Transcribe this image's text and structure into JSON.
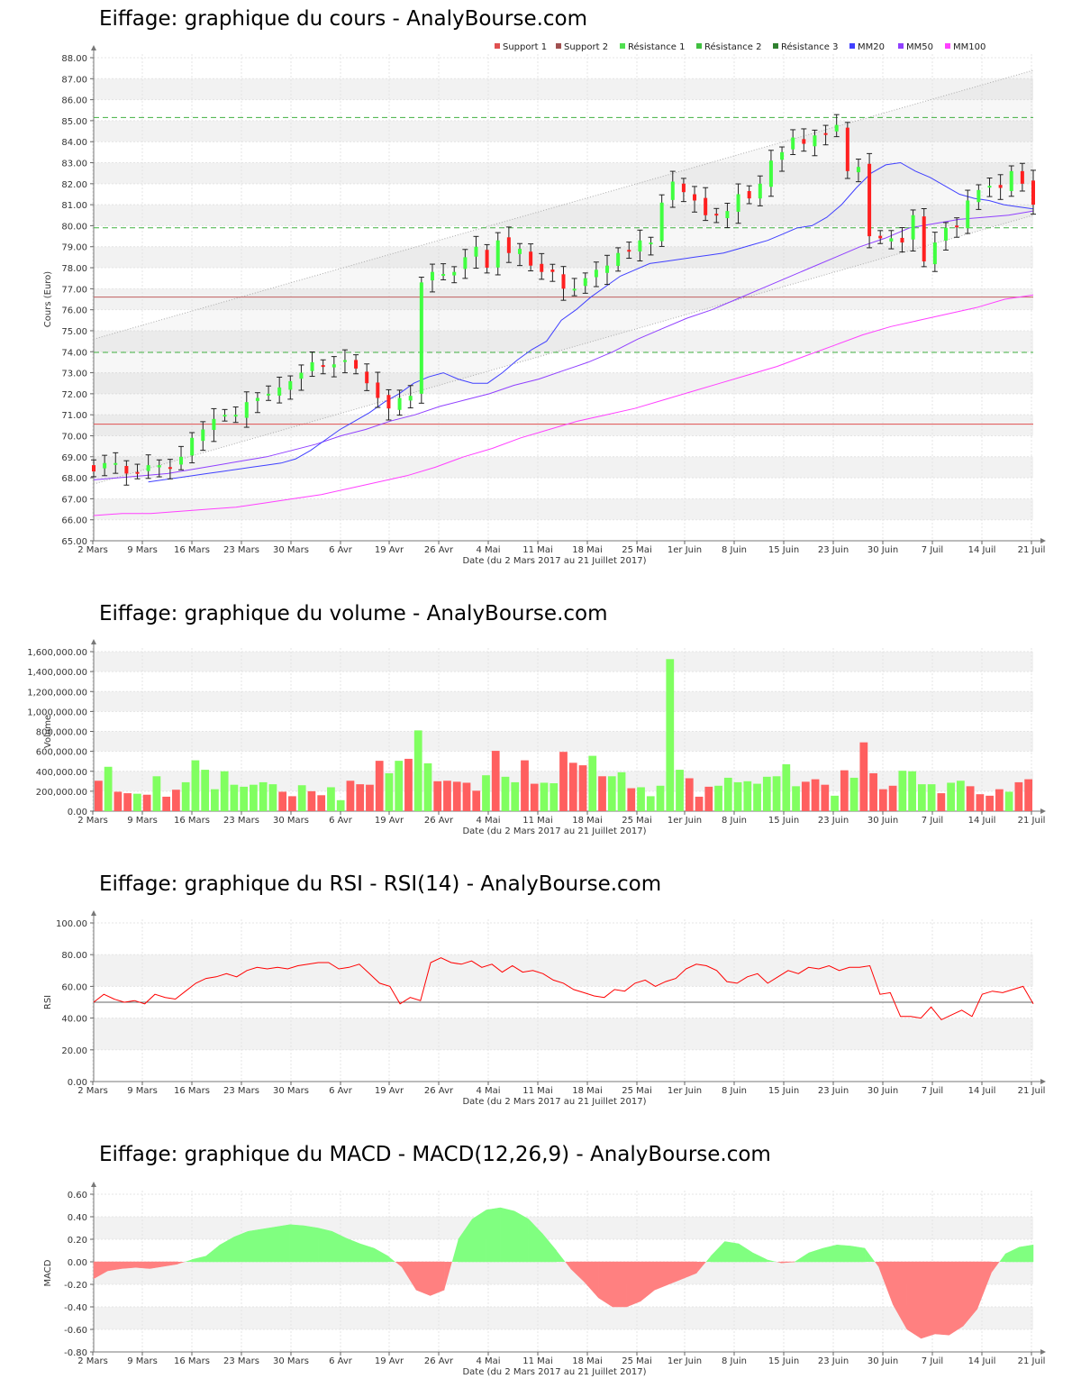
{
  "chart_data": [
    {
      "type": "candlestick",
      "title": "Eiffage: graphique du cours - AnalyBourse.com",
      "xlabel": "Date (du 2 Mars 2017 au 21 Juillet 2017)",
      "ylabel": "Cours (Euro)",
      "ylim": [
        65,
        88
      ],
      "yticks": [
        "65.00",
        "66.00",
        "67.00",
        "68.00",
        "69.00",
        "70.00",
        "71.00",
        "72.00",
        "73.00",
        "74.00",
        "75.00",
        "76.00",
        "77.00",
        "78.00",
        "79.00",
        "80.00",
        "81.00",
        "82.00",
        "83.00",
        "84.00",
        "85.00",
        "86.00",
        "87.00",
        "88.00"
      ],
      "xticks": [
        "2 Mars",
        "9 Mars",
        "16 Mars",
        "23 Mars",
        "30 Mars",
        "6 Avr",
        "19 Avr",
        "26 Avr",
        "4 Mai",
        "11 Mai",
        "18 Mai",
        "25 Mai",
        "1er Juin",
        "8 Juin",
        "15 Juin",
        "23 Juin",
        "30 Juin",
        "7 Juil",
        "14 Juil",
        "21 Juil"
      ],
      "legend_position": "top-right",
      "legend": [
        {
          "name": "Support 1",
          "color": "#e05050"
        },
        {
          "name": "Support 2",
          "color": "#a05050"
        },
        {
          "name": "Résistance 1",
          "color": "#50e050"
        },
        {
          "name": "Résistance 2",
          "color": "#40c040"
        },
        {
          "name": "Résistance 3",
          "color": "#308030"
        },
        {
          "name": "MM20",
          "color": "#4040ff"
        },
        {
          "name": "MM50",
          "color": "#9040ff"
        },
        {
          "name": "MM100",
          "color": "#ff40ff"
        }
      ],
      "levels": {
        "support_1": 70.55,
        "support_2": 76.6,
        "resistance_1": 73.97,
        "resistance_2": 79.9,
        "resistance_3": 85.15
      },
      "close": [
        68.3,
        68.7,
        68.7,
        68.2,
        68.2,
        68.6,
        68.6,
        68.5,
        69.0,
        69.9,
        70.3,
        70.8,
        71.0,
        71.0,
        71.6,
        71.8,
        72.0,
        72.3,
        72.6,
        73.0,
        73.5,
        73.3,
        73.4,
        73.6,
        73.2,
        72.5,
        71.8,
        71.3,
        71.8,
        71.9,
        77.3,
        77.8,
        77.7,
        77.8,
        78.5,
        79.0,
        78.0,
        79.3,
        78.7,
        78.9,
        78.1,
        77.8,
        77.8,
        77.0,
        77.0,
        77.5,
        77.9,
        78.1,
        78.7,
        78.8,
        79.3,
        79.2,
        81.1,
        82.1,
        81.6,
        81.2,
        80.5,
        80.5,
        80.7,
        81.5,
        81.3,
        82.0,
        83.1,
        83.5,
        84.2,
        83.9,
        84.3,
        84.4,
        84.8,
        82.6,
        82.8,
        79.5,
        79.4,
        79.4,
        79.2,
        80.5,
        78.3,
        79.2,
        79.9,
        80.0,
        81.2,
        81.7,
        81.9,
        81.8,
        82.6,
        82.0,
        81.0
      ],
      "ma20": [
        67.8,
        67.9,
        68.0,
        68.1,
        68.2,
        68.3,
        68.4,
        68.5,
        68.6,
        68.7,
        68.9,
        69.3,
        69.8,
        70.3,
        70.7,
        71.1,
        71.6,
        72.0,
        72.5,
        72.8,
        73.0,
        72.7,
        72.5,
        72.5,
        73.0,
        73.6,
        74.1,
        74.5,
        75.5,
        76.0,
        76.6,
        77.1,
        77.6,
        77.9,
        78.2,
        78.3,
        78.4,
        78.5,
        78.6,
        78.7,
        78.9,
        79.1,
        79.3,
        79.6,
        79.9,
        80.0,
        80.4,
        81.0,
        81.8,
        82.5,
        82.9,
        83.0,
        82.6,
        82.3,
        81.9,
        81.5,
        81.3,
        81.2,
        81.0,
        80.9,
        80.8
      ],
      "ma50": [
        67.9,
        68.0,
        68.1,
        68.2,
        68.4,
        68.6,
        68.8,
        69.0,
        69.3,
        69.6,
        70.0,
        70.3,
        70.7,
        71.0,
        71.4,
        71.7,
        72.0,
        72.4,
        72.7,
        73.1,
        73.5,
        74.0,
        74.6,
        75.1,
        75.6,
        76.0,
        76.5,
        77.0,
        77.5,
        78.0,
        78.5,
        79.0,
        79.4,
        79.9,
        80.1,
        80.3,
        80.4,
        80.5,
        80.7
      ],
      "ma100": [
        66.2,
        66.3,
        66.3,
        66.4,
        66.5,
        66.6,
        66.8,
        67.0,
        67.2,
        67.5,
        67.8,
        68.1,
        68.5,
        69.0,
        69.4,
        69.9,
        70.3,
        70.7,
        71.0,
        71.3,
        71.7,
        72.1,
        72.5,
        72.9,
        73.3,
        73.8,
        74.3,
        74.8,
        75.2,
        75.5,
        75.8,
        76.1,
        76.5,
        76.7
      ]
    },
    {
      "type": "bar",
      "title": "Eiffage: graphique du volume - AnalyBourse.com",
      "xlabel": "Date (du 2 Mars 2017 au 21 Juillet 2017)",
      "ylabel": "Volume",
      "ylim": [
        0,
        1600000
      ],
      "yticks": [
        "0.00",
        "200,000.00",
        "400,000.00",
        "600,000.00",
        "800,000.00",
        "1,000,000.00",
        "1,200,000.00",
        "1,400,000.00",
        "1,600,000.00"
      ],
      "xticks": [
        "2 Mars",
        "9 Mars",
        "16 Mars",
        "23 Mars",
        "30 Mars",
        "6 Avr",
        "19 Avr",
        "26 Avr",
        "4 Mai",
        "11 Mai",
        "18 Mai",
        "25 Mai",
        "1er Juin",
        "8 Juin",
        "15 Juin",
        "23 Juin",
        "30 Juin",
        "7 Juil",
        "14 Juil",
        "21 Juil"
      ],
      "values": [
        305000,
        445000,
        195000,
        180000,
        175000,
        165000,
        350000,
        145000,
        215000,
        290000,
        510000,
        415000,
        220000,
        400000,
        265000,
        245000,
        265000,
        290000,
        270000,
        195000,
        150000,
        260000,
        200000,
        160000,
        240000,
        110000,
        305000,
        270000,
        265000,
        505000,
        380000,
        505000,
        525000,
        810000,
        480000,
        300000,
        305000,
        295000,
        285000,
        205000,
        360000,
        605000,
        345000,
        290000,
        510000,
        275000,
        285000,
        280000,
        595000,
        485000,
        460000,
        555000,
        350000,
        350000,
        390000,
        230000,
        240000,
        150000,
        255000,
        1525000,
        415000,
        330000,
        145000,
        245000,
        255000,
        335000,
        290000,
        300000,
        275000,
        345000,
        350000,
        470000,
        250000,
        295000,
        320000,
        265000,
        155000,
        410000,
        335000,
        690000,
        380000,
        220000,
        255000,
        405000,
        400000,
        270000,
        270000,
        180000,
        285000,
        305000,
        250000,
        170000,
        155000,
        220000,
        195000,
        290000,
        320000
      ],
      "up": [
        false,
        true,
        false,
        false,
        true,
        false,
        true,
        false,
        false,
        true,
        true,
        true,
        true,
        true,
        true,
        true,
        true,
        true,
        true,
        false,
        false,
        true,
        false,
        false,
        true,
        true,
        false,
        false,
        false,
        false,
        true,
        true,
        false,
        true,
        true,
        false,
        false,
        false,
        false,
        false,
        true,
        false,
        true,
        true,
        false,
        false,
        true,
        true,
        false,
        false,
        false,
        true,
        false,
        true,
        true,
        false,
        true,
        true,
        true,
        true,
        true,
        false,
        false,
        false,
        true,
        true,
        true,
        true,
        true,
        true,
        true,
        true,
        true,
        false,
        false,
        false,
        true,
        false,
        true,
        false,
        false,
        false,
        false,
        true,
        true,
        true,
        true,
        false,
        true,
        true,
        false,
        false,
        false,
        false,
        true,
        false,
        false
      ],
      "colors": {
        "up": "#80ff60",
        "down": "#ff5f5f"
      }
    },
    {
      "type": "line",
      "title": "Eiffage: graphique du RSI - RSI(14) - AnalyBourse.com",
      "xlabel": "Date (du 2 Mars 2017 au 21 Juillet 2017)",
      "ylabel": "RSI",
      "ylim": [
        0,
        100
      ],
      "yticks": [
        "0.00",
        "20.00",
        "40.00",
        "60.00",
        "80.00",
        "100.00"
      ],
      "xticks": [
        "2 Mars",
        "9 Mars",
        "16 Mars",
        "23 Mars",
        "30 Mars",
        "6 Avr",
        "19 Avr",
        "26 Avr",
        "4 Mai",
        "11 Mai",
        "18 Mai",
        "25 Mai",
        "1er Juin",
        "8 Juin",
        "15 Juin",
        "23 Juin",
        "30 Juin",
        "7 Juil",
        "14 Juil",
        "21 Juil"
      ],
      "reference": 50,
      "values": [
        50,
        55,
        52,
        50,
        51,
        49,
        55,
        53,
        52,
        57,
        62,
        65,
        66,
        68,
        66,
        70,
        72,
        71,
        72,
        71,
        73,
        74,
        75,
        75,
        71,
        72,
        74,
        68,
        62,
        60,
        49,
        53,
        51,
        75,
        78,
        75,
        74,
        76,
        72,
        74,
        69,
        73,
        69,
        70,
        68,
        64,
        62,
        58,
        56,
        54,
        53,
        58,
        57,
        62,
        64,
        60,
        63,
        65,
        71,
        74,
        73,
        70,
        63,
        62,
        66,
        68,
        62,
        66,
        70,
        68,
        72,
        71,
        73,
        70,
        72,
        72,
        73,
        55,
        56,
        41,
        41,
        40,
        47,
        39,
        42,
        45,
        41,
        55,
        57,
        56,
        58,
        60,
        49
      ],
      "color": "#ff0000"
    },
    {
      "type": "area",
      "title": "Eiffage: graphique du MACD - MACD(12,26,9) - AnalyBourse.com",
      "xlabel": "Date (du 2 Mars 2017 au 21 Juillet 2017)",
      "ylabel": "MACD",
      "ylim": [
        -0.8,
        0.6
      ],
      "yticks": [
        "-0.80",
        "-0.60",
        "-0.40",
        "-0.20",
        "0.00",
        "0.20",
        "0.40",
        "0.60"
      ],
      "xticks": [
        "2 Mars",
        "9 Mars",
        "16 Mars",
        "23 Mars",
        "30 Mars",
        "6 Avr",
        "19 Avr",
        "26 Avr",
        "4 Mai",
        "11 Mai",
        "18 Mai",
        "25 Mai",
        "1er Juin",
        "8 Juin",
        "15 Juin",
        "23 Juin",
        "30 Juin",
        "7 Juil",
        "14 Juil",
        "21 Juil"
      ],
      "values": [
        -0.15,
        -0.08,
        -0.06,
        -0.05,
        -0.06,
        -0.04,
        -0.02,
        0.02,
        0.05,
        0.15,
        0.22,
        0.27,
        0.29,
        0.31,
        0.33,
        0.32,
        0.3,
        0.27,
        0.21,
        0.16,
        0.12,
        0.05,
        -0.05,
        -0.25,
        -0.3,
        -0.25,
        0.2,
        0.38,
        0.46,
        0.48,
        0.45,
        0.38,
        0.25,
        0.1,
        -0.06,
        -0.18,
        -0.32,
        -0.4,
        -0.4,
        -0.35,
        -0.25,
        -0.2,
        -0.15,
        -0.1,
        0.05,
        0.18,
        0.16,
        0.08,
        0.02,
        -0.01,
        0.0,
        0.08,
        0.12,
        0.15,
        0.14,
        0.12,
        -0.05,
        -0.38,
        -0.6,
        -0.68,
        -0.64,
        -0.65,
        -0.57,
        -0.42,
        -0.1,
        0.07,
        0.13,
        0.15
      ],
      "colors": {
        "positive": "#80ff80",
        "negative": "#ff8080"
      }
    }
  ]
}
